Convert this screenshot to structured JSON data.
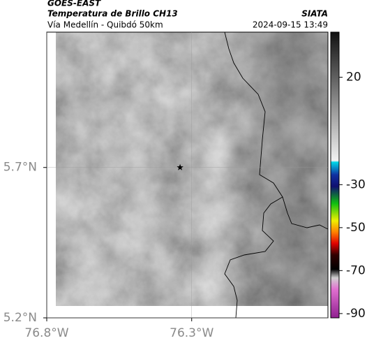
{
  "header": {
    "source": "GOES-EAST",
    "title": "Temperatura de Brillo CH13",
    "subtitle": "Vía Medellín - Quibdó 50km",
    "credit": "SIATA",
    "timestamp": "2024-09-15 13:49"
  },
  "map": {
    "xlim": [
      -76.8,
      -75.83
    ],
    "ylim": [
      5.2,
      6.15
    ],
    "xticks": [
      {
        "value": -76.8,
        "label": "76.8°W"
      },
      {
        "value": -76.3,
        "label": "76.3°W"
      }
    ],
    "yticks": [
      {
        "value": 5.7,
        "label": "5.7°N"
      },
      {
        "value": 5.2,
        "label": "5.2°N"
      }
    ],
    "grid": true,
    "marker": {
      "lon": -76.34,
      "lat": 5.7
    }
  },
  "colorbar": {
    "lim": [
      -92,
      41
    ],
    "ticks": [
      20,
      -30,
      -50,
      -70,
      -90
    ]
  }
}
